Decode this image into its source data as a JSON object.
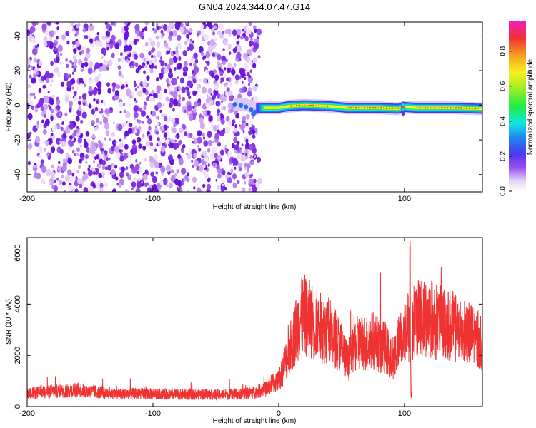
{
  "chart_data": [
    {
      "type": "heatmap",
      "title": "GN04.2024.344.07.47.G14",
      "xlabel": "Height of straight line (km)",
      "ylabel": "Frequency (Hz)",
      "xlim": [
        -200,
        162
      ],
      "ylim": [
        -50,
        48
      ],
      "xticks": [
        -200,
        -100,
        0,
        100
      ],
      "xtick_labels": [
        "-200",
        "-100",
        "",
        "100"
      ],
      "yticks": [
        -40,
        -20,
        0,
        20,
        40
      ],
      "colorbar": {
        "label": "Normalized spectral amplitude",
        "range": [
          0,
          0.97
        ],
        "ticks": [
          0,
          0.2,
          0.4,
          0.6,
          0.8
        ],
        "tick_labels": [
          "0.0",
          "0.2",
          "0.4",
          "0.6",
          "0.8"
        ]
      },
      "noise_region_x": [
        -200,
        -15
      ],
      "signal_band": {
        "x_start": -35,
        "x_end": 162,
        "frequency_center": [
          [
            -35,
            0.5
          ],
          [
            -25,
            0
          ],
          [
            -18,
            -2
          ],
          [
            -15,
            -1.5
          ],
          [
            0,
            -1.5
          ],
          [
            8,
            -0.5
          ],
          [
            20,
            0
          ],
          [
            40,
            -0.5
          ],
          [
            55,
            -1.5
          ],
          [
            80,
            -1.5
          ],
          [
            95,
            -2
          ],
          [
            100,
            -1
          ],
          [
            110,
            -1.5
          ],
          [
            140,
            -1.5
          ],
          [
            162,
            -2
          ]
        ],
        "peak_amplitude": 0.97
      }
    },
    {
      "type": "line",
      "xlabel": "Height of straight line (km)",
      "ylabel": "SNR (10 * v/v)",
      "xlim": [
        -200,
        162
      ],
      "ylim": [
        0,
        6600
      ],
      "xticks": [
        -200,
        -100,
        0,
        100
      ],
      "xtick_labels": [
        "-200",
        "-100",
        "0",
        "100"
      ],
      "yticks": [
        0,
        2000,
        4000,
        6000
      ],
      "color": "#ef3333",
      "series": [
        {
          "x": [
            -200,
            -190,
            -180,
            -170,
            -160,
            -150,
            -140,
            -130,
            -120,
            -110,
            -100,
            -90,
            -80,
            -70,
            -60,
            -50,
            -40,
            -30,
            -20,
            -10,
            -5,
            0,
            5,
            10,
            15,
            20,
            25,
            30,
            35,
            40,
            45,
            50,
            55,
            60,
            65,
            70,
            75,
            80,
            85,
            90,
            95,
            100,
            103,
            105,
            107,
            110,
            115,
            120,
            125,
            130,
            140,
            150,
            162
          ],
          "values": [
            500,
            550,
            600,
            600,
            650,
            600,
            550,
            500,
            500,
            500,
            500,
            480,
            470,
            470,
            480,
            470,
            480,
            500,
            550,
            700,
            900,
            1000,
            1700,
            2400,
            3200,
            3600,
            3400,
            3200,
            3000,
            3000,
            2700,
            2300,
            1700,
            2400,
            2500,
            2500,
            2600,
            2400,
            2300,
            1800,
            2400,
            3000,
            3200,
            1800,
            3300,
            3500,
            3500,
            3500,
            3300,
            3300,
            3100,
            2900,
            2500
          ]
        }
      ]
    }
  ]
}
